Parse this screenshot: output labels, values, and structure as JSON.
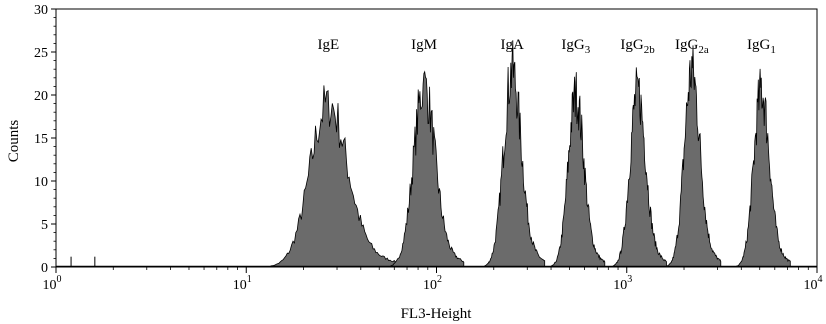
{
  "chart_data": {
    "type": "histogram",
    "xlabel": "FL3-Height",
    "ylabel": "Counts",
    "x_scale": "log",
    "xlim": [
      1,
      10000
    ],
    "ylim": [
      0,
      30
    ],
    "x_ticks": [
      {
        "value": 1,
        "base": "10",
        "exp": "0"
      },
      {
        "value": 10,
        "base": "10",
        "exp": "1"
      },
      {
        "value": 100,
        "base": "10",
        "exp": "2"
      },
      {
        "value": 1000,
        "base": "10",
        "exp": "3"
      },
      {
        "value": 10000,
        "base": "10",
        "exp": "4"
      }
    ],
    "y_ticks": [
      "0",
      "5",
      "10",
      "15",
      "20",
      "25",
      "30"
    ],
    "colors": {
      "fill": "#6b6b6b",
      "stroke": "#000000"
    },
    "peaks": [
      {
        "label": "IgE",
        "base": "IgE",
        "sub": "",
        "center": 27,
        "height": 20.5,
        "width": 0.095
      },
      {
        "label": "IgM",
        "base": "IgM",
        "sub": "",
        "center": 86,
        "height": 22.5,
        "width": 0.055
      },
      {
        "label": "IgA",
        "base": "IgA",
        "sub": "",
        "center": 250,
        "height": 24.5,
        "width": 0.045
      },
      {
        "label": "IgG3",
        "base": "IgG",
        "sub": "3",
        "center": 540,
        "height": 21.5,
        "width": 0.04
      },
      {
        "label": "IgG2b",
        "base": "IgG",
        "sub": "2b",
        "center": 1140,
        "height": 22.0,
        "width": 0.04
      },
      {
        "label": "IgG2a",
        "base": "IgG",
        "sub": "2a",
        "center": 2200,
        "height": 24.5,
        "width": 0.04
      },
      {
        "label": "IgG1",
        "base": "IgG",
        "sub": "1",
        "center": 5100,
        "height": 22.0,
        "width": 0.04
      }
    ]
  }
}
